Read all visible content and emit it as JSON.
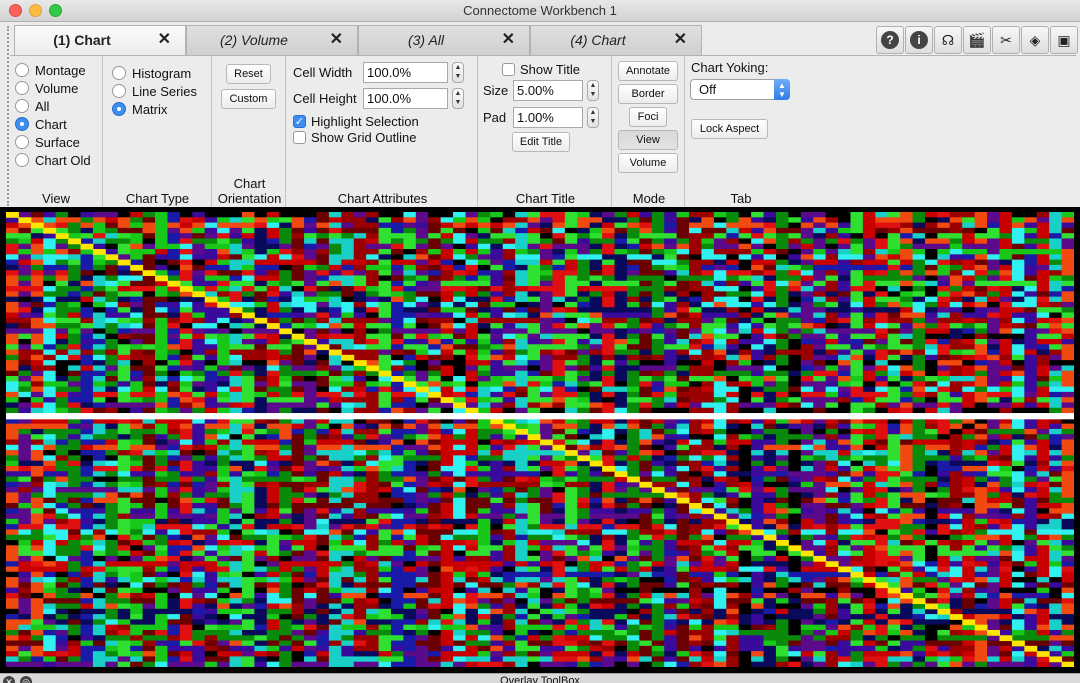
{
  "window": {
    "title": "Connectome Workbench 1"
  },
  "tabs": [
    {
      "label": "(1) Chart",
      "active": true
    },
    {
      "label": "(2) Volume",
      "active": false
    },
    {
      "label": "(3) All",
      "active": false
    },
    {
      "label": "(4) Chart",
      "active": false
    }
  ],
  "tab_close_glyph": "✕",
  "tools": [
    {
      "icon": "help-icon",
      "glyph": "?"
    },
    {
      "icon": "info-icon",
      "glyph": "i"
    },
    {
      "icon": "identify-brain-icon",
      "glyph": "☊"
    },
    {
      "icon": "movie-clapper-icon",
      "glyph": "🎬"
    },
    {
      "icon": "settings-tools-icon",
      "glyph": "✂"
    },
    {
      "icon": "layers-icon",
      "glyph": "◈"
    },
    {
      "icon": "toolbox-icon",
      "glyph": "▣"
    }
  ],
  "view_group": {
    "title": "View",
    "options": [
      "Montage",
      "Volume",
      "All",
      "Chart",
      "Surface",
      "Chart Old"
    ],
    "selected": "Chart"
  },
  "chart_type_group": {
    "title": "Chart Type",
    "options": [
      "Histogram",
      "Line Series",
      "Matrix"
    ],
    "selected": "Matrix"
  },
  "orientation_group": {
    "title": "Chart Orientation",
    "reset_label": "Reset",
    "custom_label": "Custom"
  },
  "attributes_group": {
    "title": "Chart Attributes",
    "cell_width_label": "Cell Width",
    "cell_width_value": "100.0%",
    "cell_height_label": "Cell Height",
    "cell_height_value": "100.0%",
    "highlight_label": "Highlight Selection",
    "highlight_checked": true,
    "grid_label": "Show Grid Outline",
    "grid_checked": false
  },
  "title_group": {
    "title": "Chart Title",
    "show_title_label": "Show Title",
    "show_title_checked": false,
    "size_label": "Size",
    "size_value": "5.00%",
    "pad_label": "Pad",
    "pad_value": "1.00%",
    "edit_title_label": "Edit Title"
  },
  "mode_group": {
    "title": "Mode",
    "buttons": [
      "Annotate",
      "Border",
      "Foci",
      "View",
      "Volume"
    ],
    "pressed": "View"
  },
  "tab_group": {
    "title": "Tab",
    "yoking_label": "Chart Yoking:",
    "yoking_value": "Off",
    "lock_aspect_label": "Lock Aspect"
  },
  "matrix": {
    "rows": 86,
    "cols": 86,
    "highlighted_row": 38,
    "diagonal_color": "#ffe600",
    "highlight_color": "#ffffff",
    "palette": [
      "#000000",
      "#0a0a5c",
      "#1a1aa8",
      "#3a0a9c",
      "#5a0a8a",
      "#6a0000",
      "#9a0000",
      "#c80000",
      "#e01010",
      "#f04a10",
      "#0a8a0a",
      "#18c818",
      "#30e030",
      "#18d0c8",
      "#30f0f0"
    ]
  },
  "bottom_bar": {
    "label": "Overlay ToolBox"
  }
}
